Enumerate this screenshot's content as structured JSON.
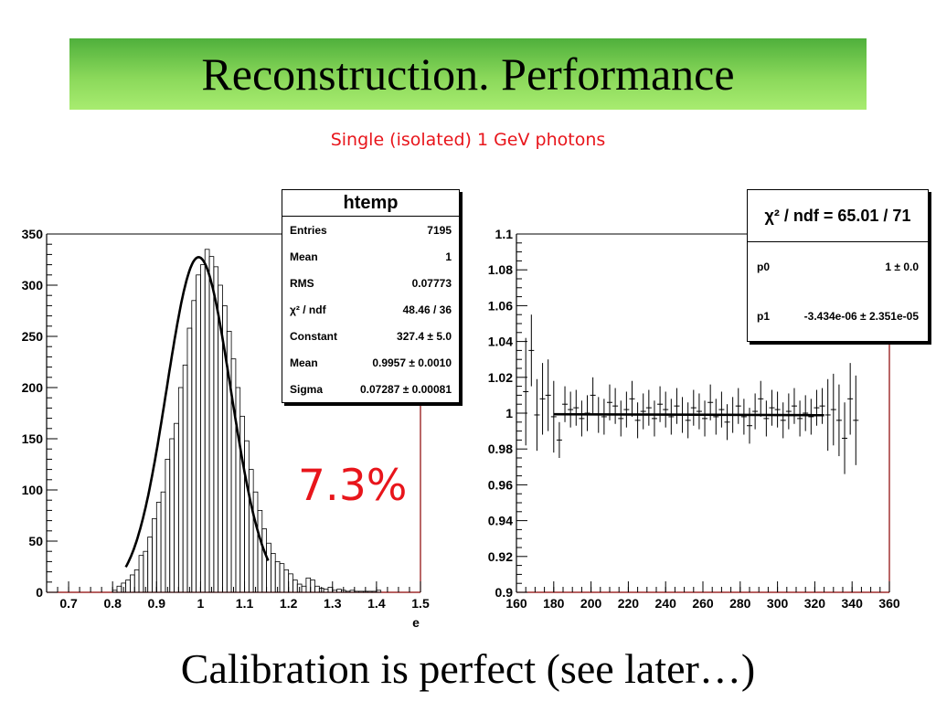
{
  "slide": {
    "title": "Reconstruction. Performance",
    "subtitle": "Single (isolated) 1 GeV photons",
    "resolution_label": "7.3%",
    "footer": "Calibration is perfect (see later…)"
  },
  "colors": {
    "accent_red": "#e8151b",
    "title_green": "#7ad54f",
    "frame_red": "#8b0000"
  },
  "stats_left": {
    "title": "htemp",
    "rows": [
      {
        "label": "Entries",
        "value": "7195"
      },
      {
        "label": "Mean",
        "value": "1"
      },
      {
        "label": "RMS",
        "value": "0.07773"
      },
      {
        "label": "χ² / ndf",
        "value": "48.46 / 36"
      },
      {
        "label": "Constant",
        "value": "327.4 ± 5.0"
      },
      {
        "label": "Mean",
        "value": "0.9957 ± 0.0010"
      },
      {
        "label": "Sigma",
        "value": "0.07287 ± 0.00081"
      }
    ]
  },
  "stats_right": {
    "title": "χ² / ndf = 65.01 / 71",
    "rows": [
      {
        "label": "p0",
        "value": "1 ± 0.0"
      },
      {
        "label": "p1",
        "value": "-3.434e-06 ± 2.351e-05"
      }
    ]
  },
  "chart_data": [
    {
      "type": "bar",
      "xlabel": "e",
      "ylabel": "",
      "xlim": [
        0.65,
        1.5
      ],
      "ylim": [
        0,
        350
      ],
      "xticks": [
        "0.7",
        "0.8",
        "0.9",
        "1",
        "1.1",
        "1.2",
        "1.3",
        "1.4",
        "1.5"
      ],
      "yticks": [
        "0",
        "50",
        "100",
        "150",
        "200",
        "250",
        "300",
        "350"
      ],
      "bin_width": 0.01,
      "bin_start": 0.8,
      "values": [
        2,
        6,
        9,
        12,
        17,
        22,
        36,
        40,
        54,
        72,
        88,
        98,
        130,
        150,
        165,
        200,
        222,
        258,
        285,
        310,
        320,
        335,
        328,
        318,
        300,
        280,
        255,
        228,
        200,
        172,
        148,
        120,
        98,
        80,
        62,
        48,
        38,
        30,
        28,
        22,
        18,
        12,
        8,
        6,
        14,
        12,
        6,
        4,
        3,
        5,
        2,
        3,
        2,
        1,
        2,
        1,
        1,
        1,
        1,
        1,
        2
      ],
      "fit": {
        "name": "gaus",
        "constant": 327.4,
        "mean": 0.9957,
        "sigma": 0.07287,
        "range": [
          0.83,
          1.155
        ]
      }
    },
    {
      "type": "scatter",
      "xlim": [
        160,
        360
      ],
      "ylim": [
        0.9,
        1.1
      ],
      "xticks": [
        "160",
        "180",
        "200",
        "220",
        "240",
        "260",
        "280",
        "300",
        "320",
        "340",
        "360"
      ],
      "yticks": [
        "0.9",
        "0.92",
        "0.94",
        "0.96",
        "0.98",
        "1",
        "1.02",
        "1.04",
        "1.06",
        "1.08",
        "1.1"
      ],
      "x": [
        165,
        168,
        171,
        174,
        177,
        180,
        183,
        186,
        189,
        192,
        195,
        198,
        201,
        204,
        207,
        210,
        213,
        216,
        219,
        222,
        225,
        228,
        231,
        234,
        237,
        240,
        243,
        246,
        249,
        252,
        255,
        258,
        261,
        264,
        267,
        270,
        273,
        276,
        279,
        282,
        285,
        288,
        291,
        294,
        297,
        300,
        303,
        306,
        309,
        312,
        315,
        318,
        321,
        324,
        327,
        330,
        333,
        336,
        339,
        342
      ],
      "y": [
        1.012,
        1.035,
        0.999,
        1.008,
        1.01,
        0.998,
        0.985,
        1.005,
        1.002,
        1.003,
        0.997,
        1.0,
        1.01,
        0.999,
        0.998,
        1.006,
        1.004,
        0.997,
        1.002,
        1.008,
        0.996,
        1.001,
        1.003,
        0.997,
        1.005,
        1.002,
        0.998,
        1.004,
        0.999,
        0.996,
        1.003,
        1.001,
        0.997,
        1.006,
        0.998,
        1.002,
        0.995,
        0.999,
        1.004,
        0.998,
        0.993,
        1.001,
        1.008,
        0.997,
        1.003,
        1.002,
        0.996,
        1.001,
        1.004,
        0.997,
        1.0,
        0.998,
        1.003,
        1.004,
        0.999,
        1.002,
        0.996,
        0.986,
        1.008,
        0.996
      ],
      "yerr": [
        0.03,
        0.02,
        0.02,
        0.02,
        0.02,
        0.02,
        0.01,
        0.01,
        0.01,
        0.01,
        0.01,
        0.01,
        0.01,
        0.01,
        0.01,
        0.01,
        0.01,
        0.01,
        0.01,
        0.01,
        0.01,
        0.01,
        0.01,
        0.01,
        0.01,
        0.01,
        0.01,
        0.01,
        0.01,
        0.01,
        0.01,
        0.01,
        0.01,
        0.01,
        0.01,
        0.01,
        0.01,
        0.01,
        0.01,
        0.01,
        0.01,
        0.01,
        0.01,
        0.01,
        0.01,
        0.01,
        0.01,
        0.01,
        0.01,
        0.01,
        0.01,
        0.01,
        0.01,
        0.01,
        0.02,
        0.02,
        0.02,
        0.02,
        0.02,
        0.025
      ],
      "fit": {
        "name": "pol1",
        "p0": 1.0,
        "p1": -3.434e-06,
        "range": [
          180,
          325
        ]
      }
    }
  ]
}
